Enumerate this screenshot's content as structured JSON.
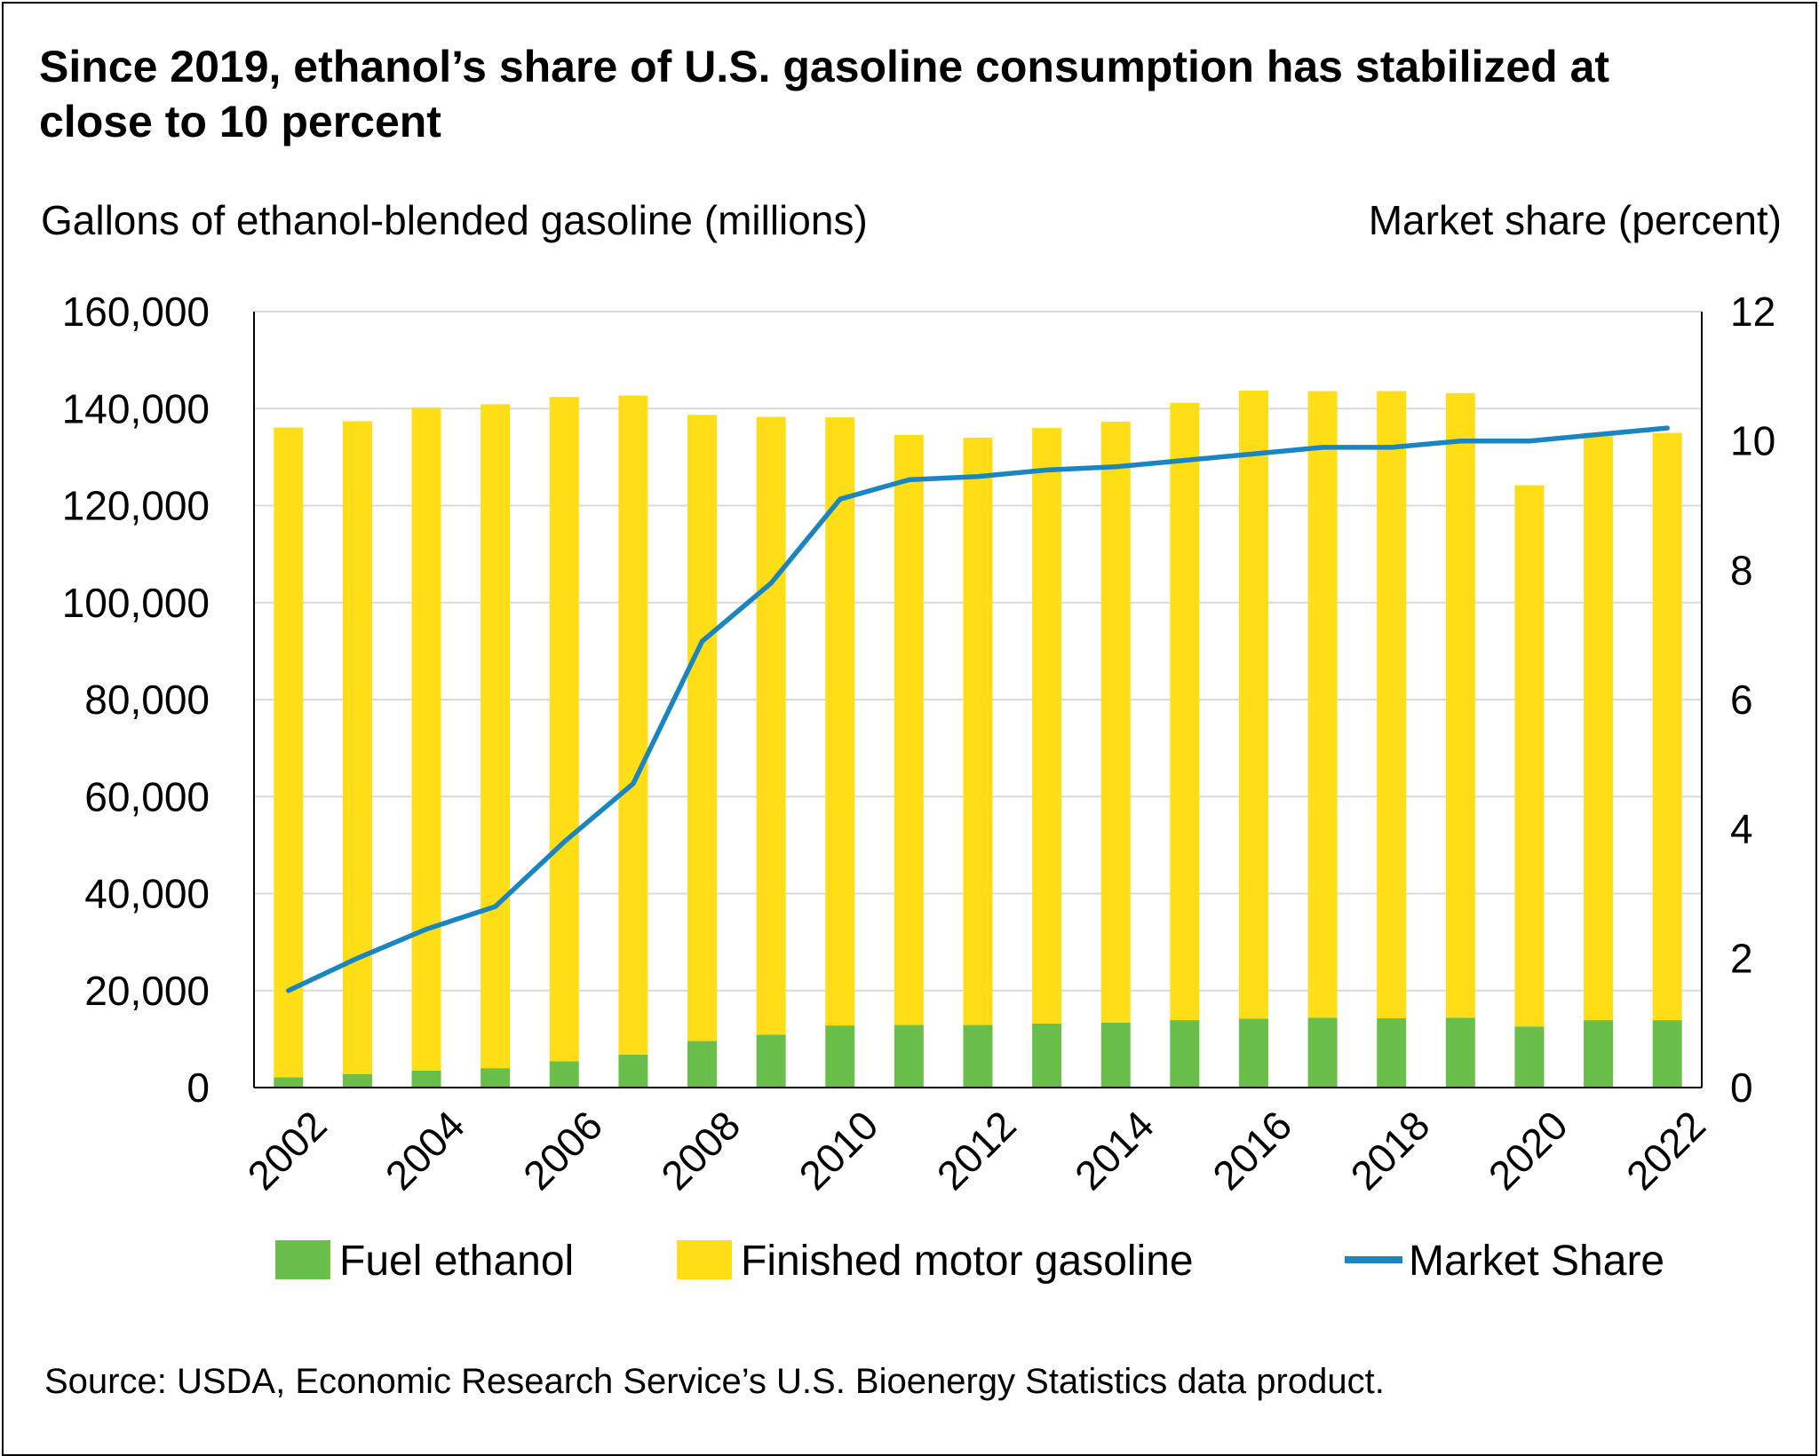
{
  "title": "Since 2019, ethanol’s share of U.S. gasoline consumption has stabilized at close to 10 percent",
  "source": "Source: USDA, Economic Research Service’s U.S. Bioenergy Statistics data product.",
  "colors": {
    "fuel_ethanol": "#6abf4b",
    "finished_motor_gasoline": "#ffde17",
    "market_share": "#1a85c1",
    "grid": "#d9d9d9"
  },
  "chart_data": {
    "type": "bar",
    "stacked": true,
    "ylabel": "Gallons of ethanol-blended gasoline (millions)",
    "y2label": "Market share (percent)",
    "ylim": [
      0,
      160000
    ],
    "y2lim": [
      0,
      12
    ],
    "yticks": [
      "0",
      "20,000",
      "40,000",
      "60,000",
      "80,000",
      "100,000",
      "120,000",
      "140,000",
      "160,000"
    ],
    "y2ticks": [
      "0",
      "2",
      "4",
      "6",
      "8",
      "10",
      "12"
    ],
    "xtick_labels": [
      "2002",
      "2004",
      "2006",
      "2008",
      "2010",
      "2012",
      "2014",
      "2016",
      "2018",
      "2020",
      "2022"
    ],
    "grid": true,
    "legend_position": "bottom",
    "categories": [
      "2002",
      "2003",
      "2004",
      "2005",
      "2006",
      "2007",
      "2008",
      "2009",
      "2010",
      "2011",
      "2012",
      "2013",
      "2014",
      "2015",
      "2016",
      "2017",
      "2018",
      "2019",
      "2020",
      "2021",
      "2022"
    ],
    "series": [
      {
        "name": "Fuel ethanol",
        "type": "bar",
        "axis": "left",
        "values": [
          2100,
          2800,
          3500,
          4000,
          5400,
          6800,
          9600,
          10900,
          12800,
          12900,
          12900,
          13200,
          13400,
          13900,
          14200,
          14400,
          14300,
          14400,
          12600,
          13900,
          13900
        ]
      },
      {
        "name": "Finished motor gasoline",
        "type": "bar",
        "axis": "left",
        "values": [
          134000,
          134600,
          136700,
          136900,
          137000,
          135900,
          129100,
          127400,
          125400,
          121700,
          121100,
          122800,
          123900,
          127300,
          129500,
          129200,
          129300,
          128800,
          111600,
          121100,
          121100
        ]
      },
      {
        "name": "Market Share",
        "type": "line",
        "axis": "right",
        "values": [
          1.5,
          2.0,
          2.45,
          2.8,
          3.8,
          4.7,
          6.9,
          7.8,
          9.1,
          9.4,
          9.45,
          9.55,
          9.6,
          9.7,
          9.8,
          9.9,
          9.9,
          10.0,
          10.0,
          10.1,
          10.2
        ]
      }
    ]
  }
}
